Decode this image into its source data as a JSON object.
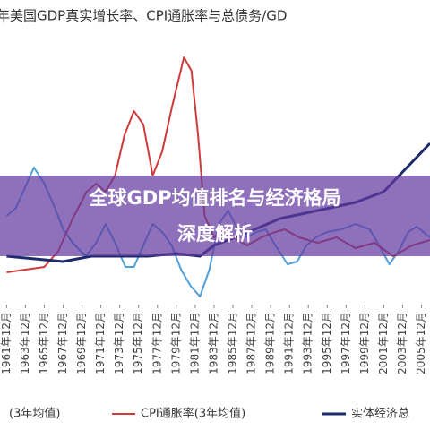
{
  "chart_data": {
    "type": "line",
    "title": "年美国GDP真实增长率、CPI通胀率与总债务/GD",
    "xlim": [
      1960.3,
      2005.9
    ],
    "ylim": [
      0,
      100
    ],
    "xticks": [
      {
        "value": 1961,
        "label": "1961年12月"
      },
      {
        "value": 1963,
        "label": "1963年12月"
      },
      {
        "value": 1965,
        "label": "1965年12月"
      },
      {
        "value": 1967,
        "label": "1967年12月"
      },
      {
        "value": 1969,
        "label": "1969年12月"
      },
      {
        "value": 1971,
        "label": "1971年12月"
      },
      {
        "value": 1973,
        "label": "1973年12月"
      },
      {
        "value": 1975,
        "label": "1975年12月"
      },
      {
        "value": 1977,
        "label": "1977年12月"
      },
      {
        "value": 1979,
        "label": "1979年12月"
      },
      {
        "value": 1981,
        "label": "1981年12月"
      },
      {
        "value": 1983,
        "label": "1983年12月"
      },
      {
        "value": 1985,
        "label": "1985年12月"
      },
      {
        "value": 1987,
        "label": "1987年12月"
      },
      {
        "value": 1989,
        "label": "1989年12月"
      },
      {
        "value": 1991,
        "label": "1991年12月"
      },
      {
        "value": 1993,
        "label": "1993年12月"
      },
      {
        "value": 1995,
        "label": "1995年12月"
      },
      {
        "value": 1997,
        "label": "1997年12月"
      },
      {
        "value": 1999,
        "label": "1999年12月"
      },
      {
        "value": 2001,
        "label": "2001年12月"
      },
      {
        "value": 2003,
        "label": "2003年12月"
      },
      {
        "value": 2005,
        "label": "2005年12月"
      }
    ],
    "series": [
      {
        "name": "(3年均值)",
        "color": "#4f9fd8",
        "x": [
          1961,
          1962,
          1963.9,
          1965,
          1966,
          1967,
          1968,
          1969.4,
          1970.5,
          1971.5,
          1972.5,
          1973.6,
          1974.5,
          1975.5,
          1976.5,
          1977.5,
          1978.5,
          1979.5,
          1980.5,
          1981.5,
          1982.5,
          1983.5,
          1984.5,
          1985.5,
          1986.5,
          1987.5,
          1988.5,
          1989.5,
          1990.8,
          1991.8,
          1992.8,
          1993.8,
          1995,
          1996.5,
          1998,
          1999.5,
          2000.5,
          2001.6,
          2002.6,
          2003.6,
          2004.5,
          2005.9
        ],
        "values": [
          33,
          36,
          51,
          45,
          37,
          28,
          23,
          18,
          23,
          30,
          23,
          14,
          14,
          22,
          30,
          27,
          22,
          13,
          7,
          3,
          13,
          30,
          35,
          28,
          25,
          27,
          28,
          22,
          15,
          16,
          22,
          25,
          27,
          28,
          30,
          28,
          22,
          15,
          20,
          27,
          29,
          25
        ]
      },
      {
        "name": "CPI通胀率(3年均值)",
        "color": "#d03a3a",
        "x": [
          1961,
          1963,
          1965,
          1966.5,
          1968,
          1969.5,
          1970.5,
          1971.5,
          1972.5,
          1973.5,
          1974.5,
          1975.5,
          1976.5,
          1977.5,
          1978.5,
          1979.8,
          1980.6,
          1981.3,
          1982,
          1983,
          1984,
          1985.5,
          1986.5,
          1988,
          1989.5,
          1990.5,
          1992,
          1994,
          1996,
          1998,
          2000,
          2002,
          2004,
          2005.9
        ],
        "values": [
          12,
          13,
          14,
          20,
          32,
          42,
          45,
          42,
          48,
          63,
          72,
          67,
          48,
          57,
          73,
          92,
          87,
          63,
          33,
          25,
          27,
          24,
          22,
          25,
          27,
          28,
          25,
          23,
          25,
          21,
          23,
          18,
          22,
          24
        ]
      },
      {
        "name": "实体经济总",
        "color": "#1b2a6b",
        "x": [
          1961,
          1964,
          1967,
          1970,
          1973,
          1976,
          1979,
          1981.5,
          1983,
          1986,
          1990,
          1994,
          1998,
          2001,
          2004,
          2005.9
        ],
        "values": [
          18,
          17,
          16,
          18,
          18,
          18,
          19,
          18,
          22,
          26,
          32,
          35,
          38,
          42,
          53,
          60
        ]
      }
    ]
  },
  "banner": {
    "line1": "全球GDP均值排名与经济格局",
    "line2": "深度解析"
  }
}
